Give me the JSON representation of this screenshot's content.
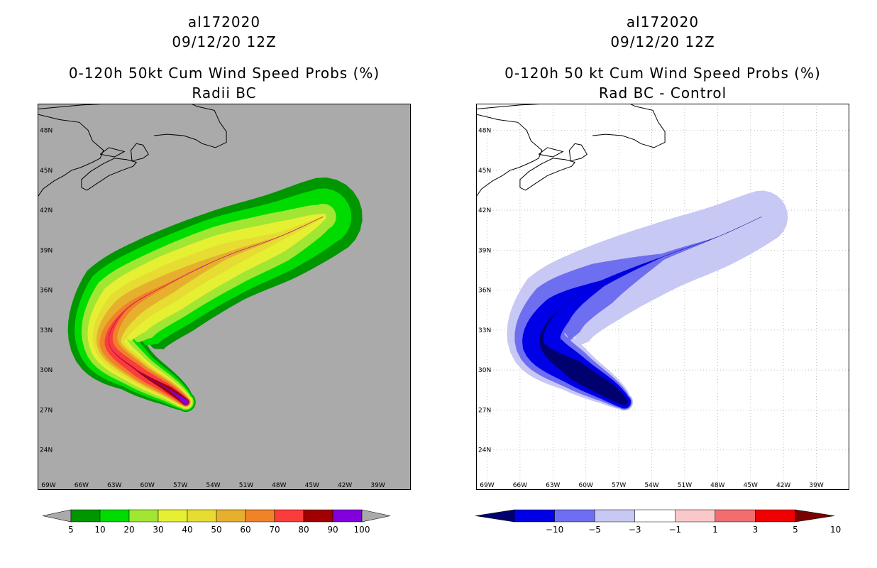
{
  "left_panel": {
    "storm_id": "al172020",
    "datetime": "09/12/20 12Z",
    "title": "0-120h 50kt Cum Wind Speed Probs (%)",
    "subtitle": "Radii BC",
    "background": "#aaaaaa"
  },
  "right_panel": {
    "storm_id": "al172020",
    "datetime": "09/12/20 12Z",
    "title": "0-120h 50 kt Cum Wind Speed Probs (%)",
    "subtitle": "Rad BC - Control",
    "background": "#ffffff"
  },
  "chart_data": [
    {
      "type": "heatmap",
      "title": "0-120h 50kt Cum Wind Speed Probs (%)",
      "subtitle": "Radii BC",
      "lon_range": [
        -70,
        -36
      ],
      "lat_range": [
        21,
        50
      ],
      "x_ticks": [
        "69W",
        "66W",
        "63W",
        "60W",
        "57W",
        "54W",
        "51W",
        "48W",
        "45W",
        "42W",
        "39W"
      ],
      "y_ticks": [
        "48N",
        "45N",
        "42N",
        "39N",
        "36N",
        "33N",
        "30N",
        "27N",
        "24N"
      ],
      "grid": false,
      "colorbar": {
        "levels": [
          "5",
          "10",
          "20",
          "30",
          "40",
          "50",
          "60",
          "70",
          "80",
          "90",
          "100"
        ],
        "colors": [
          "#009600",
          "#00dc00",
          "#a0e632",
          "#e6f032",
          "#e6dc32",
          "#e6af2d",
          "#f08228",
          "#fa3c3c",
          "#a00000",
          "#8200dc"
        ]
      },
      "centerline": [
        [
          -56.5,
          27.6
        ],
        [
          -58,
          28.5
        ],
        [
          -61,
          30
        ],
        [
          -63.5,
          32
        ],
        [
          -62,
          34.5
        ],
        [
          -58,
          36.5
        ],
        [
          -53,
          38.5
        ],
        [
          -48,
          40
        ],
        [
          -44,
          41.5
        ]
      ],
      "contours": [
        {
          "level": "5",
          "halfwidth": [
            0.9,
            1.5,
            2.2,
            3.5,
            5.0,
            4.8,
            4.3,
            4.0,
            3.6
          ]
        },
        {
          "level": "10",
          "halfwidth": [
            0.8,
            1.3,
            1.9,
            2.9,
            4.3,
            4.1,
            3.7,
            3.2,
            2.6
          ]
        },
        {
          "level": "20",
          "halfwidth": [
            0.7,
            1.1,
            1.6,
            2.3,
            3.5,
            3.3,
            2.9,
            2.3,
            1.2
          ]
        },
        {
          "level": "30",
          "halfwidth": [
            0.6,
            0.9,
            1.3,
            1.8,
            2.7,
            2.6,
            2.1,
            1.4,
            0.3
          ]
        },
        {
          "level": "40",
          "halfwidth": [
            0.5,
            0.8,
            1.1,
            1.4,
            1.9,
            1.7,
            1.2,
            0.4,
            0.05
          ]
        },
        {
          "level": "50",
          "halfwidth": [
            0.45,
            0.7,
            0.9,
            1.1,
            1.2,
            0.9,
            0.3,
            0.05,
            0.02
          ]
        },
        {
          "level": "60",
          "halfwidth": [
            0.4,
            0.6,
            0.75,
            0.85,
            0.4,
            0.1,
            0.02,
            0.01,
            0.01
          ]
        },
        {
          "level": "70",
          "halfwidth": [
            0.35,
            0.45,
            0.5,
            0.4,
            0.05,
            0.01,
            0.01,
            0.01,
            0.01
          ]
        },
        {
          "level": "80",
          "halfwidth": [
            0.3,
            0.3,
            0.05,
            0.01,
            0.01,
            0.01,
            0.01,
            0.01,
            0.01
          ]
        },
        {
          "level": "90",
          "halfwidth": [
            0.25,
            0.05,
            0.01,
            0.01,
            0.01,
            0.01,
            0.01,
            0.01,
            0.01
          ]
        }
      ]
    },
    {
      "type": "heatmap",
      "title": "0-120h 50 kt Cum Wind Speed Probs (%)",
      "subtitle": "Rad BC - Control",
      "lon_range": [
        -70,
        -36
      ],
      "lat_range": [
        21,
        50
      ],
      "x_ticks": [
        "69W",
        "66W",
        "63W",
        "60W",
        "57W",
        "54W",
        "51W",
        "48W",
        "45W",
        "42W",
        "39W"
      ],
      "y_ticks": [
        "48N",
        "45N",
        "42N",
        "39N",
        "36N",
        "33N",
        "30N",
        "27N",
        "24N"
      ],
      "grid": true,
      "colorbar": {
        "levels": [
          "-10",
          "-5",
          "-3",
          "-1",
          "1",
          "3",
          "5",
          "10"
        ],
        "colors": [
          "#00006e",
          "#0000e6",
          "#6e6ef0",
          "#c8c8f5",
          "#ffffff",
          "#fac8c8",
          "#f06e6e",
          "#f00000",
          "#780000"
        ]
      },
      "centerline": [
        [
          -56.5,
          27.6
        ],
        [
          -58,
          28.5
        ],
        [
          -61,
          30
        ],
        [
          -64,
          32
        ],
        [
          -62.5,
          34.5
        ],
        [
          -58.5,
          36.5
        ],
        [
          -53,
          38.5
        ],
        [
          -48,
          40
        ],
        [
          -44,
          41.5
        ]
      ],
      "contours": [
        {
          "level": "-1",
          "halfwidth": [
            0.8,
            1.4,
            2.1,
            3.0,
            4.0,
            3.6,
            3.1,
            2.8,
            2.4
          ]
        },
        {
          "level": "-3",
          "halfwidth": [
            0.7,
            1.2,
            1.8,
            2.4,
            2.8,
            2.0,
            0.3,
            0.01,
            0.01
          ]
        },
        {
          "level": "-5",
          "halfwidth": [
            0.6,
            1.0,
            1.4,
            1.8,
            1.4,
            0.3,
            0.01,
            0.01,
            0.01
          ]
        },
        {
          "level": "-10",
          "halfwidth": [
            0.3,
            0.7,
            0.9,
            0.2,
            0.01,
            0.01,
            0.01,
            0.01,
            0.01
          ]
        }
      ]
    }
  ]
}
